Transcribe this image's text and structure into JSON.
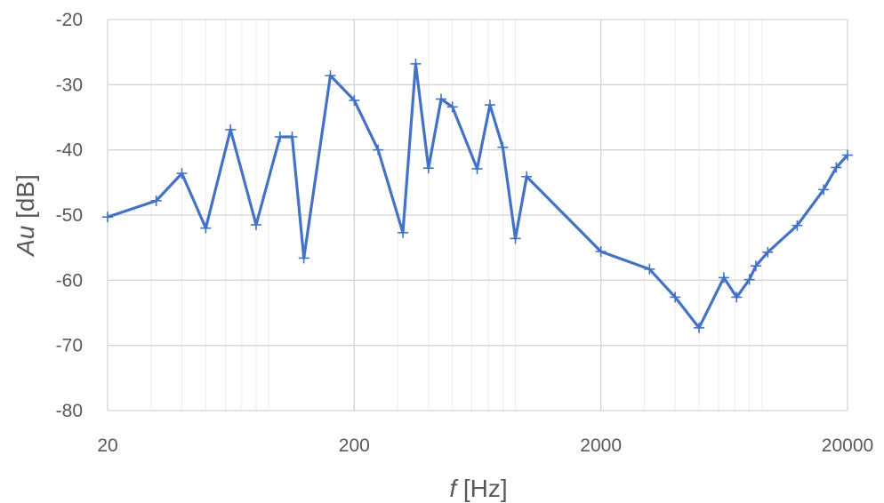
{
  "chart_data": {
    "type": "line",
    "x_scale": "log",
    "xlim": [
      20,
      20000
    ],
    "ylim": [
      -80,
      -20
    ],
    "x_ticks": [
      "20",
      "200",
      "2000",
      "20000"
    ],
    "y_ticks": [
      "-20",
      "-30",
      "-40",
      "-50",
      "-60",
      "-70",
      "-80"
    ],
    "xlabel": {
      "symbol": "f",
      "unit": "[Hz]"
    },
    "ylabel": {
      "symbol": "Au",
      "unit": "[dB]"
    },
    "grid": true,
    "marker": "plus",
    "color": "#4472c4",
    "series": [
      {
        "x": [
          20,
          31.5,
          40,
          50,
          63,
          80,
          100,
          112,
          125,
          160,
          200,
          250,
          315,
          355,
          400,
          450,
          500,
          630,
          710,
          800,
          900,
          1000,
          2000,
          3150,
          4000,
          5000,
          6300,
          7100,
          8000,
          8500,
          9500,
          12500,
          16000,
          18000,
          20000
        ],
        "y": [
          -50.3,
          -47.8,
          -43.6,
          -52,
          -36.9,
          -51.5,
          -38,
          -38,
          -56.6,
          -28.6,
          -32.4,
          -40,
          -52.7,
          -26.8,
          -42.8,
          -32.2,
          -33.4,
          -42.9,
          -33.1,
          -39.6,
          -53.6,
          -44.1,
          -55.6,
          -58.3,
          -62.6,
          -67.3,
          -59.6,
          -62.6,
          -59.9,
          -57.8,
          -55.7,
          -51.6,
          -46.1,
          -42.7,
          -40.8
        ]
      }
    ]
  }
}
